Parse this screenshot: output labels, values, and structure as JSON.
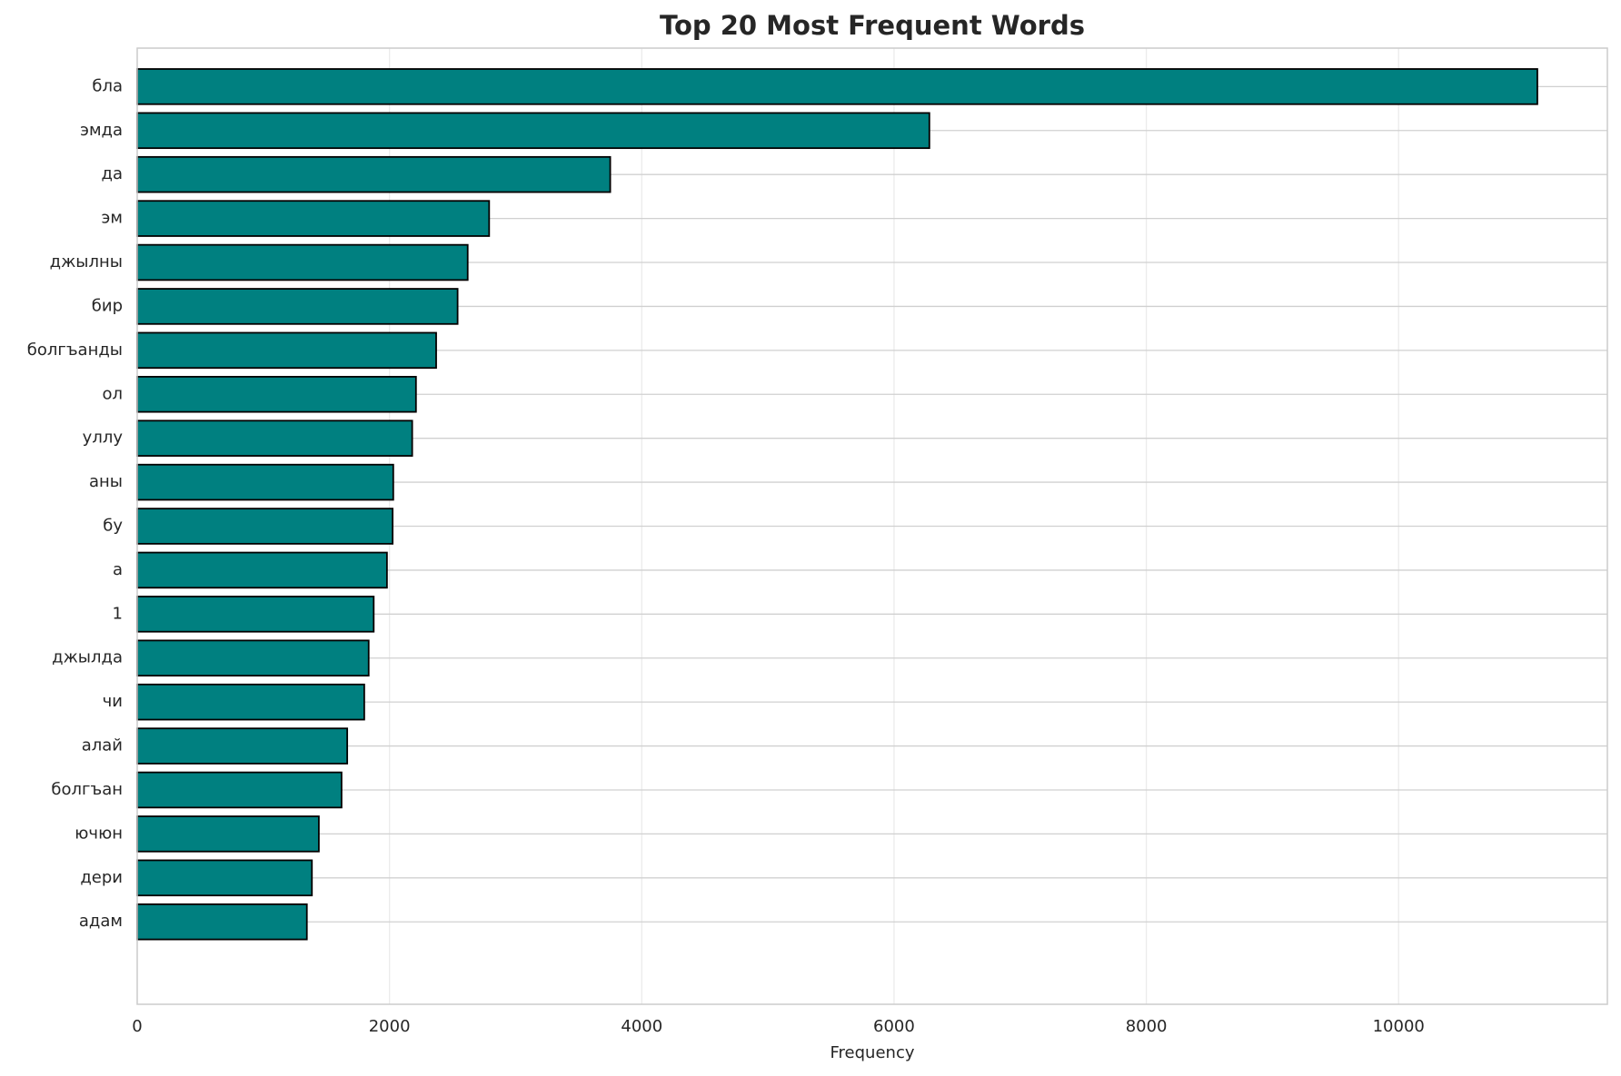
{
  "chart_data": {
    "type": "barh",
    "title": "Top 20 Most Frequent Words",
    "x_label": "Frequency",
    "categories": [
      "бла",
      "эмда",
      "да",
      "эм",
      "джылны",
      "бир",
      "болгъанды",
      "ол",
      "уллу",
      "аны",
      "бу",
      "а",
      "1",
      "джылда",
      "чи",
      "алай",
      "болгъан",
      "ючюн",
      "дери",
      "адам"
    ],
    "values": [
      11100,
      6280,
      3750,
      2790,
      2620,
      2540,
      2370,
      2210,
      2180,
      2030,
      2025,
      1980,
      1875,
      1835,
      1800,
      1665,
      1620,
      1440,
      1385,
      1345
    ],
    "color": "#008080",
    "edgecolor": "#000000",
    "xlim": [
      0,
      11655
    ],
    "xticks": [
      0,
      2000,
      4000,
      6000,
      8000,
      10000
    ],
    "grid": true
  }
}
